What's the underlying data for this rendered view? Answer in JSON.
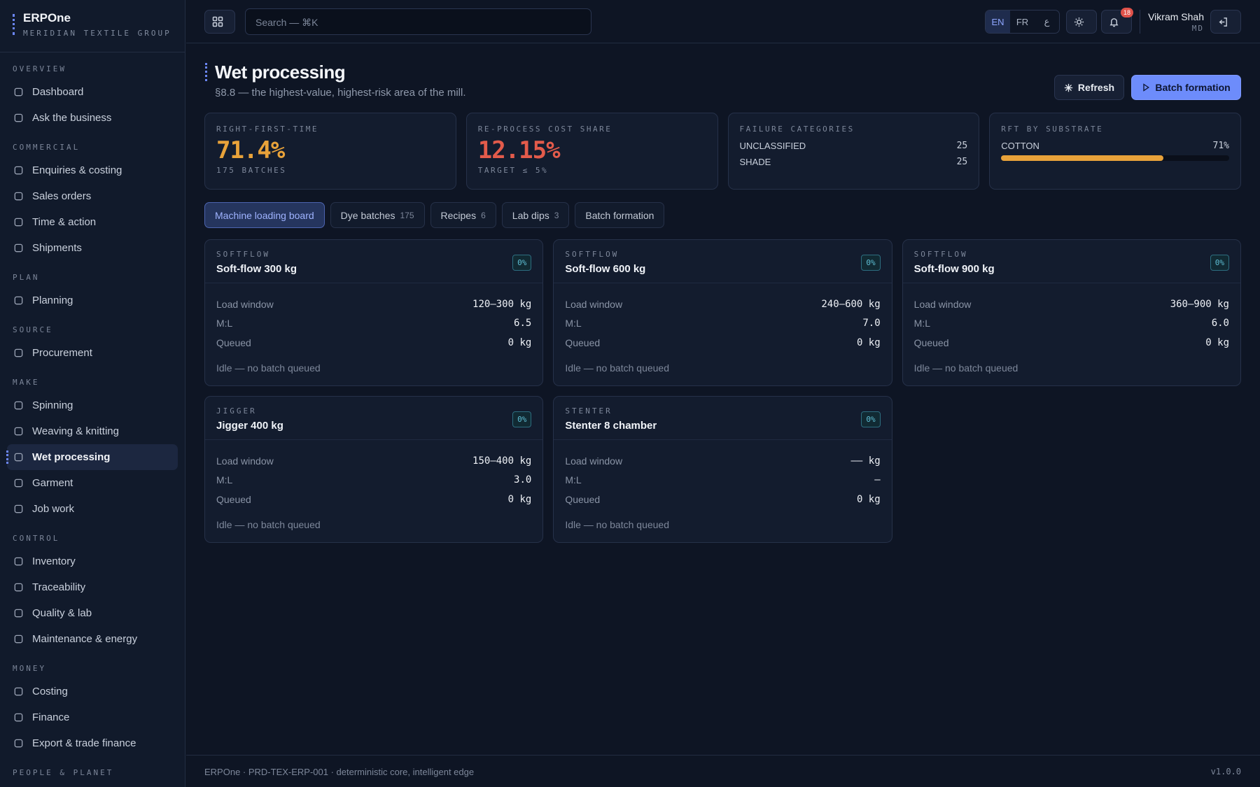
{
  "brand": {
    "name": "ERPOne",
    "org": "MERIDIAN TEXTILE GROUP"
  },
  "nav": [
    {
      "section": "OVERVIEW",
      "items": [
        {
          "label": "Dashboard"
        },
        {
          "label": "Ask the business"
        }
      ]
    },
    {
      "section": "COMMERCIAL",
      "items": [
        {
          "label": "Enquiries & costing"
        },
        {
          "label": "Sales orders"
        },
        {
          "label": "Time & action"
        },
        {
          "label": "Shipments"
        }
      ]
    },
    {
      "section": "PLAN",
      "items": [
        {
          "label": "Planning"
        }
      ]
    },
    {
      "section": "SOURCE",
      "items": [
        {
          "label": "Procurement"
        }
      ]
    },
    {
      "section": "MAKE",
      "items": [
        {
          "label": "Spinning"
        },
        {
          "label": "Weaving & knitting"
        },
        {
          "label": "Wet processing",
          "active": true
        },
        {
          "label": "Garment"
        },
        {
          "label": "Job work"
        }
      ]
    },
    {
      "section": "CONTROL",
      "items": [
        {
          "label": "Inventory"
        },
        {
          "label": "Traceability"
        },
        {
          "label": "Quality & lab"
        },
        {
          "label": "Maintenance & energy"
        }
      ]
    },
    {
      "section": "MONEY",
      "items": [
        {
          "label": "Costing"
        },
        {
          "label": "Finance"
        },
        {
          "label": "Export & trade finance"
        }
      ]
    },
    {
      "section": "PEOPLE & PLANET",
      "items": []
    }
  ],
  "topbar": {
    "search_placeholder": "Search — ⌘K",
    "languages": [
      {
        "label": "EN",
        "active": true
      },
      {
        "label": "FR"
      },
      {
        "label": "ع"
      }
    ],
    "notifications": "18",
    "user": {
      "name": "Vikram Shah",
      "role": "MD"
    }
  },
  "page": {
    "title": "Wet processing",
    "subtitle": "§8.8 — the highest-value, highest-risk area of the mill.",
    "actions": {
      "refresh": "Refresh",
      "primary": "Batch formation"
    }
  },
  "kpis": [
    {
      "label": "RIGHT-FIRST-TIME",
      "value": "71.4%",
      "sub": "175 BATCHES",
      "tone": "warn"
    },
    {
      "label": "RE-PROCESS COST SHARE",
      "value": "12.15%",
      "sub": "TARGET ≤ 5%",
      "tone": "bad"
    },
    {
      "label": "FAILURE CATEGORIES",
      "rows": [
        {
          "label": "UNCLASSIFIED",
          "value": "25"
        },
        {
          "label": "SHADE",
          "value": "25"
        }
      ]
    },
    {
      "label": "RFT BY SUBSTRATE",
      "bars": [
        {
          "label": "COTTON",
          "value": 71,
          "value_label": "71%"
        }
      ]
    }
  ],
  "tabs": [
    {
      "label": "Machine loading board",
      "active": true
    },
    {
      "label": "Dye batches",
      "count": "175"
    },
    {
      "label": "Recipes",
      "count": "6"
    },
    {
      "label": "Lab dips",
      "count": "3"
    },
    {
      "label": "Batch formation"
    }
  ],
  "machines": [
    {
      "type": "SOFTFLOW",
      "name": "Soft-flow 300 kg",
      "badge": "0%",
      "rows": [
        {
          "label": "Load window",
          "value": "120–300 kg"
        },
        {
          "label": "M:L",
          "value": "6.5"
        },
        {
          "label": "Queued",
          "value": "0 kg"
        }
      ],
      "status": "Idle — no batch queued"
    },
    {
      "type": "SOFTFLOW",
      "name": "Soft-flow 600 kg",
      "badge": "0%",
      "rows": [
        {
          "label": "Load window",
          "value": "240–600 kg"
        },
        {
          "label": "M:L",
          "value": "7.0"
        },
        {
          "label": "Queued",
          "value": "0 kg"
        }
      ],
      "status": "Idle — no batch queued"
    },
    {
      "type": "SOFTFLOW",
      "name": "Soft-flow 900 kg",
      "badge": "0%",
      "rows": [
        {
          "label": "Load window",
          "value": "360–900 kg"
        },
        {
          "label": "M:L",
          "value": "6.0"
        },
        {
          "label": "Queued",
          "value": "0 kg"
        }
      ],
      "status": "Idle — no batch queued"
    },
    {
      "type": "JIGGER",
      "name": "Jigger 400 kg",
      "badge": "0%",
      "rows": [
        {
          "label": "Load window",
          "value": "150–400 kg"
        },
        {
          "label": "M:L",
          "value": "3.0"
        },
        {
          "label": "Queued",
          "value": "0 kg"
        }
      ],
      "status": "Idle — no batch queued"
    },
    {
      "type": "STENTER",
      "name": "Stenter 8 chamber",
      "badge": "0%",
      "rows": [
        {
          "label": "Load window",
          "value": "—— kg"
        },
        {
          "label": "M:L",
          "value": "—"
        },
        {
          "label": "Queued",
          "value": "0 kg"
        }
      ],
      "status": "Idle — no batch queued"
    }
  ],
  "footer": {
    "left": "ERPOne · PRD-TEX-ERP-001 · deterministic core, intelligent edge",
    "right": "v1.0.0"
  }
}
